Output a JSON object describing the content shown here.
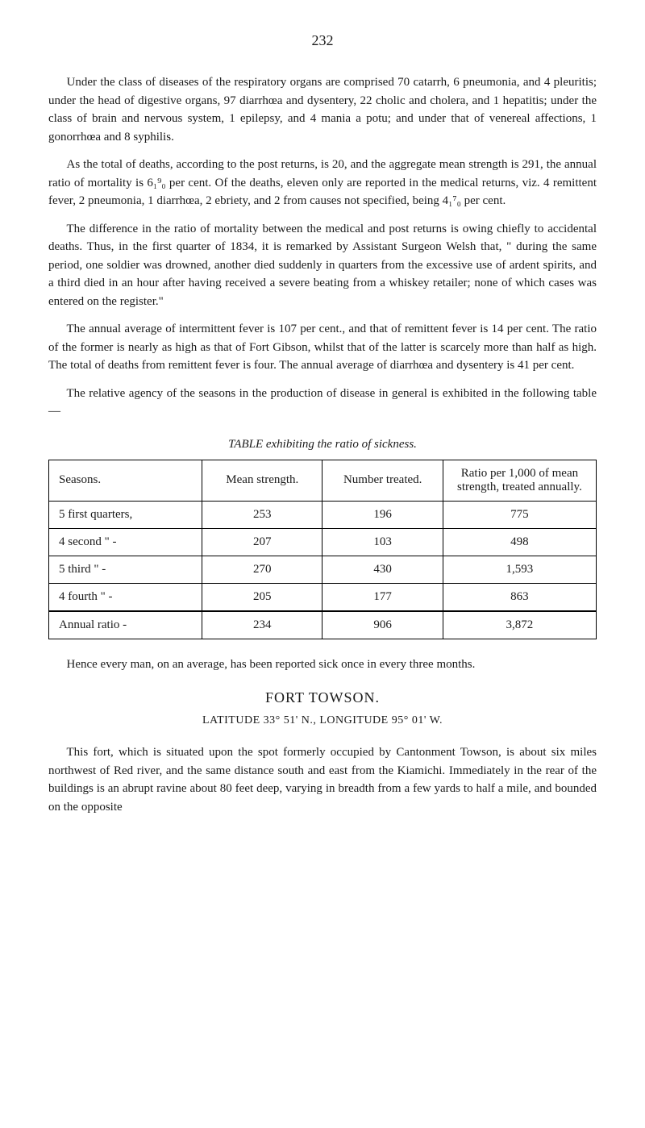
{
  "page_number": "232",
  "paragraphs": {
    "p1": "Under the class of diseases of the respiratory organs are comprised 70 catarrh, 6 pneumonia, and 4 pleuritis; under the head of digestive organs, 97 diarrhœa and dysentery, 22 cholic and cholera, and 1 hepatitis; under the class of brain and nervous system, 1 epilepsy, and 4 mania a potu; and under that of venereal affections, 1 gonorrhœa and 8 syphilis.",
    "p2": "As the total of deaths, according to the post returns, is 20, and the aggregate mean strength is 291, the annual ratio of mortality is 6₁⁹₀ per cent. Of the deaths, eleven only are reported in the medical returns, viz. 4 remittent fever, 2 pneumonia, 1 diarrhœa, 2 ebriety, and 2 from causes not specified, being 4₁⁷₀ per cent.",
    "p3": "The difference in the ratio of mortality between the medical and post returns is owing chiefly to accidental deaths. Thus, in the first quarter of 1834, it is remarked by Assistant Surgeon Welsh that, \" during the same period, one soldier was drowned, another died suddenly in quarters from the excessive use of ardent spirits, and a third died in an hour after having received a severe beating from a whiskey retailer; none of which cases was entered on the register.\"",
    "p4": "The annual average of intermittent fever is 107 per cent., and that of remittent fever is 14 per cent. The ratio of the former is nearly as high as that of Fort Gibson, whilst that of the latter is scarcely more than half as high. The total of deaths from remittent fever is four. The annual average of diarrhœa and dysentery is 41 per cent.",
    "p5": "The relative agency of the seasons in the production of disease in general is exhibited in the following table—",
    "p6": "Hence every man, on an average, has been reported sick once in every three months.",
    "p7": "This fort, which is situated upon the spot formerly occupied by Cantonment Towson, is about six miles northwest of Red river, and the same distance south and east from the Kiamichi. Immediately in the rear of the buildings is an abrupt ravine about 80 feet deep, varying in breadth from a few yards to half a mile, and bounded on the opposite"
  },
  "table": {
    "caption": "TABLE exhibiting the ratio of sickness.",
    "columns": [
      "Seasons.",
      "Mean strength.",
      "Number treated.",
      "Ratio per 1,000 of mean strength, treated annually."
    ],
    "rows": [
      [
        "5 first quarters,",
        "253",
        "196",
        "775"
      ],
      [
        "4 second  \"   -",
        "207",
        "103",
        "498"
      ],
      [
        "5 third   \"   -",
        "270",
        "430",
        "1,593"
      ],
      [
        "4 fourth  \"   -",
        "205",
        "177",
        "863"
      ]
    ],
    "total_row": [
      "Annual ratio  -",
      "234",
      "906",
      "3,872"
    ],
    "border_color": "#000000",
    "background_color": "#ffffff",
    "font_size": 15
  },
  "section": {
    "heading": "FORT TOWSON.",
    "subheading": "LATITUDE 33° 51' N., LONGITUDE 95° 01' W."
  },
  "style": {
    "body_font_size": 15,
    "text_color": "#1a1a1a",
    "background_color": "#ffffff"
  }
}
